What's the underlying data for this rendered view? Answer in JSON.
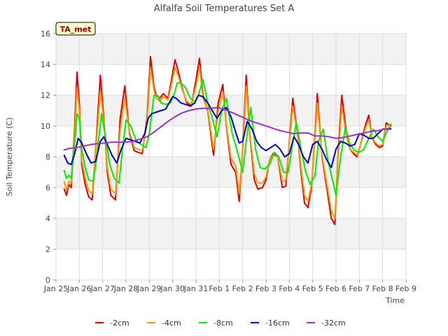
{
  "chart_data": {
    "type": "line",
    "title": "Alfalfa Soil Temperatures Set A",
    "xlabel": "Time",
    "ylabel": "Soil Temperature (C)",
    "ylim": [
      0,
      16
    ],
    "yticks": [
      0,
      2,
      4,
      6,
      8,
      10,
      12,
      14,
      16
    ],
    "xlim": [
      0,
      15
    ],
    "xticks": [
      {
        "x": 0,
        "label": "Jan 25"
      },
      {
        "x": 1,
        "label": "Jan 26"
      },
      {
        "x": 2,
        "label": "Jan 27"
      },
      {
        "x": 3,
        "label": "Jan 28"
      },
      {
        "x": 4,
        "label": "Jan 29"
      },
      {
        "x": 5,
        "label": "Jan 30"
      },
      {
        "x": 6,
        "label": "Jan 31"
      },
      {
        "x": 7,
        "label": "Feb 1"
      },
      {
        "x": 8,
        "label": "Feb 2"
      },
      {
        "x": 9,
        "label": "Feb 3"
      },
      {
        "x": 10,
        "label": "Feb 4"
      },
      {
        "x": 11,
        "label": "Feb 5"
      },
      {
        "x": 12,
        "label": "Feb 6"
      },
      {
        "x": 13,
        "label": "Feb 7"
      },
      {
        "x": 14,
        "label": "Feb 8"
      },
      {
        "x": 15,
        "label": "Feb 9"
      }
    ],
    "grid": true,
    "legend": "bottom",
    "annotation": "TA_met",
    "series": [
      {
        "name": "-2cm",
        "color": "#dd0000",
        "x": [
          0.35,
          0.45,
          0.55,
          0.65,
          0.8,
          0.9,
          1.0,
          1.1,
          1.25,
          1.4,
          1.55,
          1.7,
          1.9,
          2.05,
          2.2,
          2.35,
          2.55,
          2.75,
          2.95,
          3.15,
          3.35,
          3.5,
          3.7,
          3.9,
          4.05,
          4.2,
          4.3,
          4.45,
          4.6,
          4.8,
          4.95,
          5.1,
          5.25,
          5.4,
          5.6,
          5.8,
          6.0,
          6.15,
          6.3,
          6.5,
          6.75,
          6.95,
          7.15,
          7.3,
          7.5,
          7.7,
          7.85,
          8.0,
          8.15,
          8.3,
          8.5,
          8.65,
          8.85,
          9.0,
          9.15,
          9.3,
          9.5,
          9.7,
          9.85,
          10.0,
          10.15,
          10.35,
          10.5,
          10.65,
          10.8,
          10.95,
          11.1,
          11.2,
          11.4,
          11.6,
          11.8,
          11.95,
          12.1,
          12.25,
          12.45,
          12.6,
          12.75,
          12.9,
          13.05,
          13.25,
          13.4,
          13.55,
          13.7,
          13.85,
          14.0,
          14.15,
          14.35
        ],
        "y": [
          5.9,
          5.5,
          6.2,
          6.0,
          10.0,
          13.5,
          11.5,
          7.5,
          6.2,
          5.4,
          5.2,
          8.5,
          13.3,
          10.5,
          7.0,
          5.5,
          5.2,
          10.5,
          12.6,
          9.5,
          8.4,
          8.3,
          8.2,
          10.5,
          14.5,
          12.5,
          12.0,
          11.8,
          12.1,
          11.8,
          13.0,
          14.3,
          13.5,
          12.5,
          11.5,
          11.3,
          13.0,
          14.4,
          12.0,
          11.0,
          8.1,
          11.5,
          12.7,
          10.0,
          7.5,
          7.0,
          5.1,
          8.5,
          13.3,
          9.5,
          6.5,
          5.9,
          6.0,
          6.5,
          7.8,
          8.2,
          8.0,
          6.0,
          6.1,
          9.0,
          11.8,
          9.5,
          7.0,
          5.0,
          4.7,
          6.0,
          9.5,
          12.1,
          8.0,
          6.0,
          4.0,
          3.6,
          8.5,
          12.0,
          9.5,
          8.5,
          8.2,
          8.0,
          8.8,
          10.0,
          10.7,
          9.2,
          8.8,
          8.6,
          8.7,
          10.2,
          10.0
        ]
      },
      {
        "name": "-4cm",
        "color": "#ff9900",
        "x": [
          0.35,
          0.45,
          0.55,
          0.65,
          0.8,
          0.9,
          1.0,
          1.1,
          1.25,
          1.4,
          1.55,
          1.7,
          1.9,
          2.05,
          2.2,
          2.35,
          2.55,
          2.75,
          2.95,
          3.15,
          3.35,
          3.5,
          3.7,
          3.9,
          4.05,
          4.2,
          4.3,
          4.45,
          4.6,
          4.8,
          4.95,
          5.1,
          5.25,
          5.4,
          5.6,
          5.8,
          6.0,
          6.15,
          6.3,
          6.5,
          6.75,
          6.95,
          7.15,
          7.3,
          7.5,
          7.7,
          7.85,
          8.0,
          8.15,
          8.3,
          8.5,
          8.65,
          8.85,
          9.0,
          9.15,
          9.3,
          9.5,
          9.7,
          9.85,
          10.0,
          10.15,
          10.35,
          10.5,
          10.65,
          10.8,
          10.95,
          11.1,
          11.2,
          11.4,
          11.6,
          11.8,
          11.95,
          12.1,
          12.25,
          12.45,
          12.6,
          12.75,
          12.9,
          13.05,
          13.25,
          13.4,
          13.55,
          13.7,
          13.85,
          14.0,
          14.15,
          14.35
        ],
        "y": [
          6.4,
          5.8,
          6.4,
          6.3,
          9.5,
          12.5,
          11.0,
          7.8,
          6.6,
          5.8,
          5.6,
          8.3,
          12.3,
          10.3,
          7.3,
          5.9,
          5.6,
          9.8,
          11.8,
          9.6,
          8.6,
          8.5,
          8.4,
          10.2,
          13.8,
          12.3,
          11.8,
          11.6,
          11.9,
          11.7,
          12.7,
          13.8,
          13.2,
          12.4,
          11.6,
          11.4,
          12.6,
          13.8,
          11.8,
          11.1,
          8.5,
          11.0,
          12.2,
          10.1,
          7.9,
          7.4,
          5.6,
          8.3,
          12.6,
          9.6,
          6.9,
          6.3,
          6.3,
          6.7,
          7.8,
          8.1,
          8.0,
          6.4,
          6.5,
          8.9,
          11.3,
          9.5,
          7.3,
          5.5,
          5.1,
          6.2,
          9.2,
          11.5,
          8.1,
          6.3,
          4.5,
          4.0,
          8.2,
          11.3,
          9.3,
          8.5,
          8.3,
          8.1,
          8.8,
          9.8,
          10.4,
          9.2,
          8.9,
          8.7,
          8.8,
          10.0,
          10.1
        ]
      },
      {
        "name": "-8cm",
        "color": "#00ee00",
        "x": [
          0.35,
          0.45,
          0.55,
          0.65,
          0.8,
          0.9,
          1.0,
          1.1,
          1.25,
          1.4,
          1.6,
          1.75,
          1.95,
          2.1,
          2.3,
          2.5,
          2.7,
          2.85,
          3.0,
          3.2,
          3.45,
          3.65,
          3.85,
          4.0,
          4.2,
          4.35,
          4.5,
          4.7,
          4.9,
          5.05,
          5.2,
          5.35,
          5.55,
          5.75,
          5.95,
          6.1,
          6.3,
          6.5,
          6.7,
          6.9,
          7.1,
          7.3,
          7.55,
          7.8,
          8.0,
          8.15,
          8.35,
          8.55,
          8.75,
          8.95,
          9.15,
          9.35,
          9.55,
          9.75,
          9.95,
          10.1,
          10.3,
          10.5,
          10.7,
          10.9,
          11.1,
          11.25,
          11.45,
          11.65,
          11.85,
          12.0,
          12.2,
          12.4,
          12.6,
          12.8,
          13.0,
          13.2,
          13.4,
          13.6,
          13.8,
          14.0,
          14.2,
          14.35
        ],
        "y": [
          7.1,
          6.6,
          6.8,
          6.6,
          8.8,
          10.8,
          10.5,
          8.5,
          7.3,
          6.5,
          6.4,
          8.0,
          10.8,
          9.5,
          7.5,
          6.6,
          6.3,
          8.5,
          10.4,
          10.0,
          9.0,
          8.8,
          8.6,
          9.5,
          12.0,
          12.0,
          11.5,
          11.4,
          11.5,
          12.0,
          12.8,
          12.8,
          12.5,
          11.8,
          11.6,
          12.0,
          13.0,
          11.5,
          10.5,
          9.3,
          11.0,
          11.8,
          9.5,
          8.2,
          7.0,
          9.0,
          11.2,
          8.5,
          7.3,
          7.2,
          7.5,
          8.3,
          8.0,
          7.0,
          7.0,
          8.5,
          10.2,
          8.5,
          7.0,
          6.2,
          6.8,
          9.0,
          9.8,
          7.8,
          6.5,
          5.5,
          8.0,
          9.9,
          8.8,
          8.4,
          8.3,
          8.5,
          9.2,
          9.8,
          9.3,
          9.0,
          9.7,
          10.1
        ]
      },
      {
        "name": "-16cm",
        "color": "#0000cc",
        "x": [
          0.35,
          0.5,
          0.65,
          0.8,
          0.95,
          1.1,
          1.3,
          1.5,
          1.7,
          1.9,
          2.05,
          2.2,
          2.4,
          2.6,
          2.8,
          3.0,
          3.2,
          3.4,
          3.6,
          3.8,
          3.95,
          4.1,
          4.3,
          4.5,
          4.7,
          4.85,
          5.0,
          5.15,
          5.35,
          5.55,
          5.75,
          5.95,
          6.1,
          6.3,
          6.5,
          6.7,
          6.9,
          7.1,
          7.3,
          7.5,
          7.7,
          7.85,
          8.0,
          8.2,
          8.4,
          8.6,
          8.8,
          9.0,
          9.2,
          9.4,
          9.6,
          9.8,
          10.0,
          10.2,
          10.4,
          10.6,
          10.8,
          11.0,
          11.2,
          11.4,
          11.6,
          11.8,
          12.0,
          12.2,
          12.4,
          12.6,
          12.8,
          13.0,
          13.2,
          13.4,
          13.6,
          13.8,
          14.0,
          14.2,
          14.35
        ],
        "y": [
          8.1,
          7.6,
          7.5,
          8.2,
          9.2,
          8.9,
          8.2,
          7.6,
          7.7,
          9.0,
          9.3,
          8.8,
          8.1,
          7.6,
          8.5,
          9.2,
          9.1,
          9.0,
          8.9,
          9.5,
          10.5,
          10.8,
          10.9,
          11.0,
          11.1,
          11.5,
          11.9,
          11.8,
          11.5,
          11.4,
          11.3,
          11.5,
          12.0,
          11.9,
          11.5,
          11.0,
          10.5,
          11.0,
          11.2,
          10.6,
          9.6,
          8.9,
          9.0,
          10.3,
          9.8,
          9.0,
          8.6,
          8.4,
          8.6,
          8.8,
          8.5,
          8.0,
          8.2,
          9.3,
          8.8,
          8.0,
          7.6,
          8.8,
          9.0,
          8.5,
          7.8,
          7.3,
          8.5,
          9.0,
          8.9,
          8.7,
          8.8,
          9.5,
          9.4,
          9.2,
          9.2,
          9.5,
          9.8,
          9.8,
          9.8
        ]
      },
      {
        "name": "-32cm",
        "color": "#9933cc",
        "x": [
          0.35,
          0.6,
          0.9,
          1.2,
          1.5,
          1.8,
          2.1,
          2.4,
          2.7,
          3.0,
          3.3,
          3.6,
          3.9,
          4.2,
          4.5,
          4.8,
          5.1,
          5.4,
          5.7,
          6.0,
          6.3,
          6.6,
          6.9,
          7.2,
          7.5,
          7.8,
          8.1,
          8.4,
          8.7,
          9.0,
          9.3,
          9.6,
          9.9,
          10.2,
          10.5,
          10.8,
          11.1,
          11.4,
          11.7,
          12.0,
          12.3,
          12.6,
          12.9,
          13.2,
          13.5,
          13.8,
          14.1,
          14.35
        ],
        "y": [
          8.45,
          8.55,
          8.6,
          8.7,
          8.8,
          8.85,
          8.9,
          8.95,
          8.95,
          8.95,
          9.0,
          9.15,
          9.3,
          9.6,
          9.95,
          10.3,
          10.6,
          10.85,
          11.0,
          11.1,
          11.15,
          11.15,
          11.2,
          11.1,
          10.9,
          10.7,
          10.5,
          10.3,
          10.15,
          10.0,
          9.85,
          9.7,
          9.6,
          9.5,
          9.55,
          9.55,
          9.35,
          9.35,
          9.3,
          9.2,
          9.25,
          9.35,
          9.45,
          9.55,
          9.65,
          9.7,
          9.8,
          9.85
        ]
      }
    ]
  }
}
